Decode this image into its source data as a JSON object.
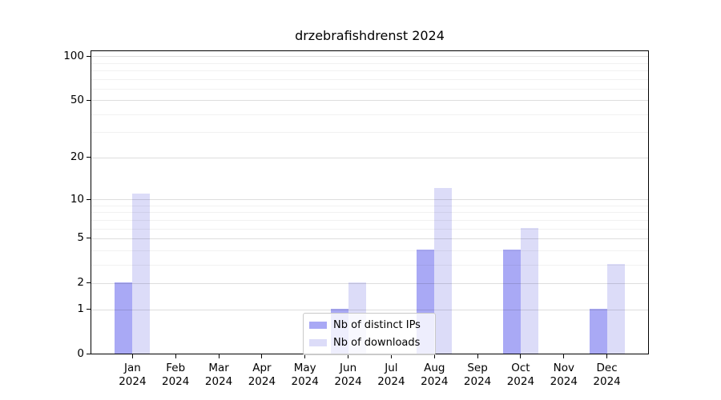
{
  "title": "drzebrafishdrenst 2024",
  "chart_data": {
    "type": "bar",
    "title": "drzebrafishdrenst 2024",
    "scale": "log10(1+x)",
    "grid": true,
    "categories": [
      "Jan",
      "Feb",
      "Mar",
      "Apr",
      "May",
      "Jun",
      "Jul",
      "Aug",
      "Sep",
      "Oct",
      "Nov",
      "Dec"
    ],
    "year_label": "2024",
    "series": [
      {
        "name": "Nb of distinct IPs",
        "color": "#a9a9f5",
        "values": [
          2,
          0,
          0,
          0,
          0,
          1,
          0,
          4,
          0,
          4,
          0,
          1
        ]
      },
      {
        "name": "Nb of downloads",
        "color": "#dcdcf8",
        "values": [
          11,
          0,
          0,
          0,
          0,
          2,
          0,
          12,
          0,
          6,
          0,
          3
        ]
      }
    ],
    "yticks": [
      0,
      1,
      2,
      5,
      10,
      20,
      50,
      100
    ],
    "minor_yticks": [
      3,
      4,
      6,
      7,
      8,
      9,
      30,
      40,
      60,
      70,
      80,
      90
    ],
    "ylim": [
      0,
      110
    ],
    "legend_position": "lower center",
    "colors": {
      "axis": "#000000",
      "background": "#ffffff",
      "major_grid": "rgba(0,0,0,0.13)",
      "minor_grid": "rgba(0,0,0,0.055)"
    }
  }
}
